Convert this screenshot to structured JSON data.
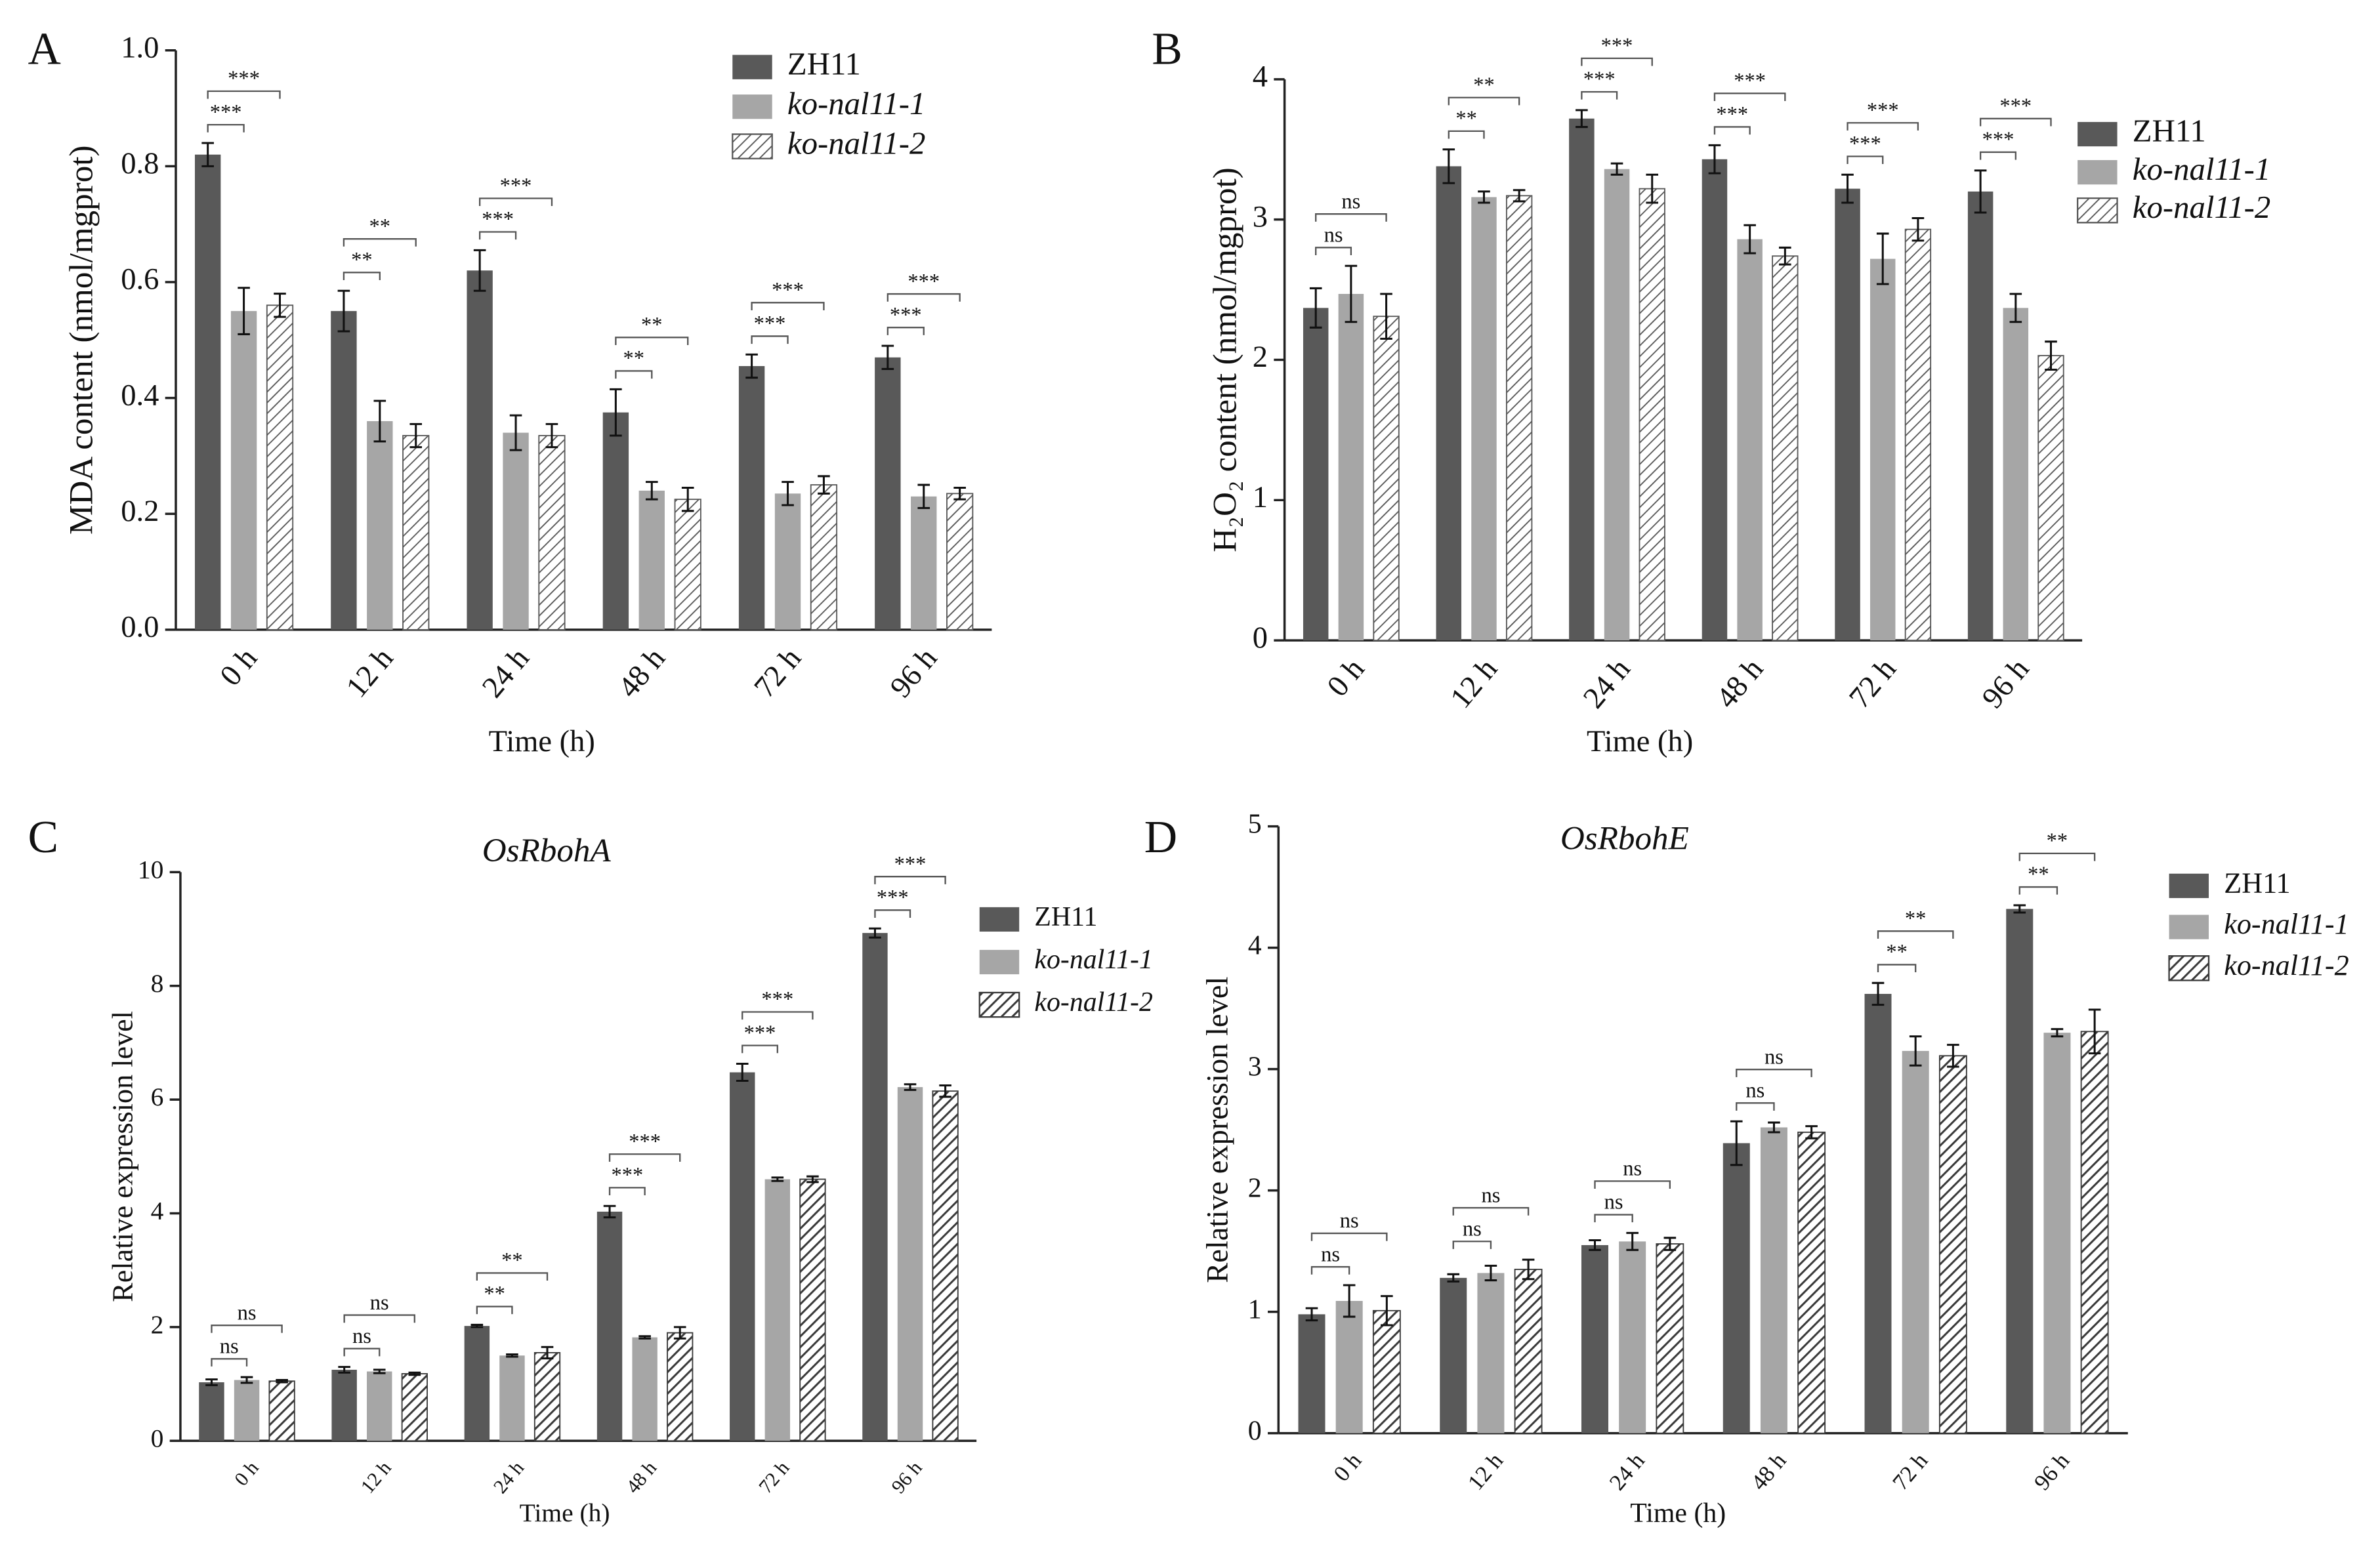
{
  "chart_data": [
    {
      "type": "bar",
      "panel": "A",
      "ylabel": "MDA content (nmol/mgprot)",
      "xlabel": "Time (h)",
      "categories": [
        "0 h",
        "12 h",
        "24 h",
        "48 h",
        "72 h",
        "96 h"
      ],
      "ylim": [
        0,
        1
      ],
      "yticks": [
        {
          "value": 0,
          "label": "0.0"
        },
        0.2,
        0.4,
        0.6,
        0.8,
        {
          "value": 1,
          "label": "1.0"
        }
      ],
      "series": [
        {
          "name": "ZH11",
          "color": "#595959",
          "values": [
            0.82,
            0.55,
            0.62,
            0.375,
            0.455,
            0.47
          ],
          "errors": [
            0.02,
            0.035,
            0.035,
            0.04,
            0.02,
            0.02
          ]
        },
        {
          "name": "ko-nal11-1",
          "color": "#a6a6a6",
          "values": [
            0.55,
            0.36,
            0.34,
            0.24,
            0.235,
            0.23
          ],
          "errors": [
            0.04,
            0.035,
            0.03,
            0.015,
            0.02,
            0.02
          ],
          "significance": [
            "***",
            "**",
            "***",
            "**",
            "***",
            "***"
          ]
        },
        {
          "name": "ko-nal11-2",
          "color": "#595959",
          "hatch": true,
          "values": [
            0.56,
            0.335,
            0.335,
            0.225,
            0.25,
            0.235
          ],
          "errors": [
            0.02,
            0.02,
            0.02,
            0.02,
            0.015,
            0.01
          ],
          "significance": [
            "***",
            "**",
            "***",
            "**",
            "***",
            "***"
          ]
        }
      ]
    },
    {
      "type": "bar",
      "panel": "B",
      "ylabel": "H₂O₂ content (nmol/mgprot)",
      "xlabel": "Time (h)",
      "categories": [
        "0 h",
        "12 h",
        "24 h",
        "48 h",
        "72 h",
        "96 h"
      ],
      "ylim": [
        0,
        4
      ],
      "yticks": [
        0,
        1,
        2,
        3,
        4
      ],
      "series": [
        {
          "name": "ZH11",
          "color": "#595959",
          "values": [
            2.37,
            3.38,
            3.72,
            3.43,
            3.22,
            3.2
          ],
          "errors": [
            0.14,
            0.12,
            0.06,
            0.1,
            0.1,
            0.15
          ]
        },
        {
          "name": "ko-nal11-1",
          "color": "#a6a6a6",
          "values": [
            2.47,
            3.16,
            3.36,
            2.86,
            2.72,
            2.37
          ],
          "errors": [
            0.2,
            0.04,
            0.04,
            0.1,
            0.18,
            0.1
          ],
          "significance": [
            "ns",
            "**",
            "***",
            "***",
            "***",
            "***"
          ]
        },
        {
          "name": "ko-nal11-2",
          "color": "#595959",
          "hatch": true,
          "values": [
            2.31,
            3.17,
            3.22,
            2.74,
            2.93,
            2.03
          ],
          "errors": [
            0.16,
            0.04,
            0.1,
            0.06,
            0.08,
            0.1
          ],
          "significance": [
            "ns",
            "**",
            "***",
            "***",
            "***",
            "***"
          ]
        }
      ]
    },
    {
      "type": "bar",
      "panel": "C",
      "title": "OsRbohA",
      "ylabel": "Relative expression level",
      "xlabel": "Time (h)",
      "categories": [
        "0 h",
        "12 h",
        "24 h",
        "48 h",
        "72 h",
        "96 h"
      ],
      "ylim": [
        0,
        10
      ],
      "yticks": [
        0,
        2,
        4,
        6,
        8,
        10
      ],
      "series": [
        {
          "name": "ZH11",
          "color": "#595959",
          "values": [
            1.03,
            1.25,
            2.02,
            4.03,
            6.48,
            8.93
          ],
          "errors": [
            0.05,
            0.05,
            0.02,
            0.1,
            0.15,
            0.08
          ]
        },
        {
          "name": "ko-nal11-1",
          "color": "#a6a6a6",
          "values": [
            1.07,
            1.22,
            1.5,
            1.82,
            4.6,
            6.22
          ],
          "errors": [
            0.05,
            0.03,
            0.02,
            0.02,
            0.03,
            0.05
          ],
          "significance": [
            "ns",
            "ns",
            "**",
            "***",
            "***",
            "***"
          ]
        },
        {
          "name": "ko-nal11-2",
          "color": "#3a3a3a",
          "hatch": true,
          "values": [
            1.05,
            1.18,
            1.55,
            1.9,
            4.6,
            6.15
          ],
          "errors": [
            0.02,
            0.02,
            0.1,
            0.1,
            0.05,
            0.1
          ],
          "significance": [
            "ns",
            "ns",
            "**",
            "***",
            "***",
            "***"
          ]
        }
      ]
    },
    {
      "type": "bar",
      "panel": "D",
      "title": "OsRbohE",
      "ylabel": "Relative expression level",
      "xlabel": "Time (h)",
      "categories": [
        "0 h",
        "12 h",
        "24 h",
        "48 h",
        "72 h",
        "96 h"
      ],
      "ylim": [
        0,
        5
      ],
      "yticks": [
        0,
        1,
        2,
        3,
        4,
        5
      ],
      "series": [
        {
          "name": "ZH11",
          "color": "#595959",
          "values": [
            0.98,
            1.28,
            1.55,
            2.39,
            3.62,
            4.32
          ],
          "errors": [
            0.05,
            0.03,
            0.04,
            0.18,
            0.09,
            0.03
          ]
        },
        {
          "name": "ko-nal11-1",
          "color": "#a6a6a6",
          "values": [
            1.09,
            1.32,
            1.58,
            2.52,
            3.15,
            3.3
          ],
          "errors": [
            0.13,
            0.06,
            0.07,
            0.04,
            0.12,
            0.03
          ],
          "significance": [
            "ns",
            "ns",
            "ns",
            "ns",
            "**",
            "**"
          ]
        },
        {
          "name": "ko-nal11-2",
          "color": "#3a3a3a",
          "hatch": true,
          "values": [
            1.01,
            1.35,
            1.56,
            2.48,
            3.11,
            3.31
          ],
          "errors": [
            0.12,
            0.08,
            0.05,
            0.05,
            0.09,
            0.18
          ],
          "significance": [
            "ns",
            "ns",
            "ns",
            "ns",
            "**",
            "**"
          ]
        }
      ]
    }
  ]
}
